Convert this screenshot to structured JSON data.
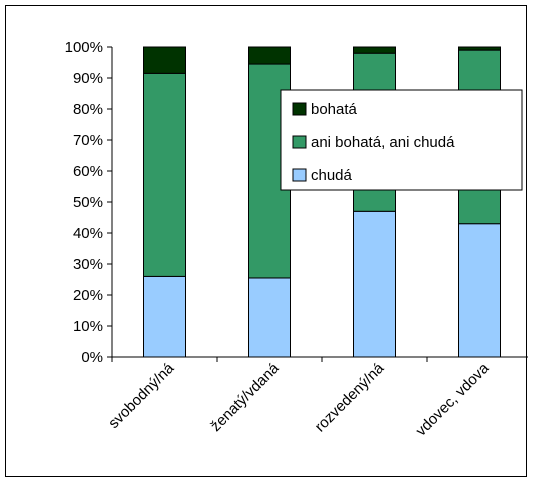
{
  "chart_data": {
    "type": "bar",
    "stacked": "percent",
    "categories": [
      "svobodný/ná",
      "ženatý/vdaná",
      "rozvedený/ná",
      "vdovec, vdova"
    ],
    "series": [
      {
        "name": "chudá",
        "color": "#99ccff",
        "values": [
          26,
          25.5,
          47,
          43
        ]
      },
      {
        "name": "ani bohatá, ani chudá",
        "color": "#339966",
        "values": [
          65.5,
          69,
          51,
          56
        ]
      },
      {
        "name": "bohatá",
        "color": "#003300",
        "values": [
          8.5,
          5.5,
          2,
          1
        ]
      }
    ],
    "y_ticks": [
      "0%",
      "10%",
      "20%",
      "30%",
      "40%",
      "50%",
      "60%",
      "70%",
      "80%",
      "90%",
      "100%"
    ],
    "ylim": [
      0,
      100
    ],
    "legend_order": [
      "bohatá",
      "ani bohatá, ani chudá",
      "chudá"
    ],
    "legend_position": "inside-right",
    "grid": false,
    "title": "",
    "xlabel": "",
    "ylabel": ""
  }
}
